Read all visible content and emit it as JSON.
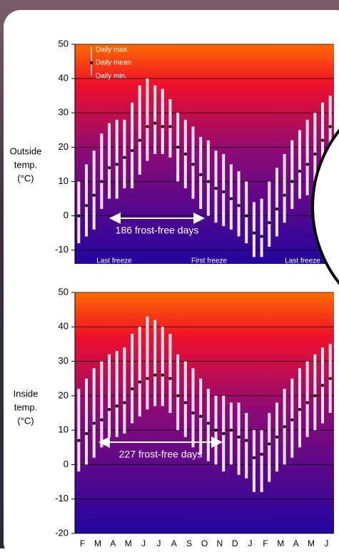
{
  "chart_data": [
    {
      "type": "range",
      "ylabel": [
        "Outside",
        "temp.",
        "(°C)"
      ],
      "x": [
        0.25,
        0.75,
        1.25,
        1.75,
        2.25,
        2.75,
        3.25,
        3.75,
        4.25,
        4.75,
        5.25,
        5.75,
        6.25,
        6.75,
        7.25,
        7.75,
        8.25,
        8.75,
        9.25,
        9.75,
        10.25,
        10.75,
        11.25,
        11.75,
        12.25,
        12.75,
        13.25,
        13.75,
        14.25,
        14.75,
        15.25,
        15.75,
        16.25,
        16.75
      ],
      "xlim": [
        0,
        17
      ],
      "ylim": [
        -14,
        50
      ],
      "yticks": [
        -10,
        0,
        10,
        20,
        30,
        40,
        50
      ],
      "series": [
        {
          "name": "Daily max.",
          "color": "#fbe4f4",
          "values": [
            10,
            15,
            19,
            24,
            27,
            28,
            28,
            33,
            38,
            40,
            38,
            37,
            34,
            30,
            28,
            26,
            23,
            22,
            19,
            18,
            15,
            13,
            10,
            4,
            5,
            10,
            14,
            18,
            22,
            25,
            28,
            30,
            33,
            35
          ]
        },
        {
          "name": "Daily mean",
          "color": "#000000",
          "values": [
            0,
            3,
            6,
            10,
            14,
            15,
            17,
            19,
            22,
            26,
            27,
            26,
            26,
            20,
            18,
            15,
            12,
            10,
            8,
            7,
            5,
            3,
            0,
            -5,
            -6,
            -2,
            2,
            6,
            10,
            13,
            15,
            18,
            22,
            26
          ]
        },
        {
          "name": "Daily min.",
          "color": "#fbe4f4",
          "values": [
            -8,
            -6,
            -4,
            2,
            5,
            5,
            8,
            8,
            12,
            16,
            18,
            18,
            17,
            10,
            8,
            5,
            2,
            0,
            -2,
            -3,
            -4,
            -6,
            -8,
            -12,
            -12,
            -9,
            -6,
            -2,
            2,
            5,
            6,
            10,
            14,
            18
          ]
        }
      ],
      "annotations": [
        "186 frost-free days"
      ],
      "freeze_labels": [
        "Last freeze",
        "First freeze",
        "Last freeze"
      ]
    },
    {
      "type": "range",
      "ylabel": [
        "Inside",
        "temp.",
        "(°C)"
      ],
      "categories": [
        "F",
        "M",
        "A",
        "M",
        "J",
        "J",
        "A",
        "S",
        "O",
        "N",
        "D",
        "J",
        "F",
        "M",
        "A",
        "M",
        "J"
      ],
      "x": [
        0.25,
        0.75,
        1.25,
        1.75,
        2.25,
        2.75,
        3.25,
        3.75,
        4.25,
        4.75,
        5.25,
        5.75,
        6.25,
        6.75,
        7.25,
        7.75,
        8.25,
        8.75,
        9.25,
        9.75,
        10.25,
        10.75,
        11.25,
        11.75,
        12.25,
        12.75,
        13.25,
        13.75,
        14.25,
        14.75,
        15.25,
        15.75,
        16.25,
        16.75
      ],
      "xlim": [
        0,
        17
      ],
      "ylim": [
        -20,
        50
      ],
      "yticks": [
        -20,
        -10,
        0,
        10,
        20,
        30,
        40,
        50
      ],
      "series": [
        {
          "name": "Daily max.",
          "color": "#fbe4f4",
          "values": [
            22,
            25,
            28,
            30,
            32,
            33,
            34,
            38,
            40,
            43,
            42,
            40,
            38,
            32,
            30,
            28,
            25,
            22,
            20,
            20,
            18,
            18,
            15,
            10,
            10,
            15,
            18,
            22,
            25,
            28,
            30,
            32,
            34,
            35
          ]
        },
        {
          "name": "Daily mean",
          "color": "#000000",
          "values": [
            7,
            9,
            12,
            13,
            16,
            17,
            18,
            22,
            24,
            25,
            26,
            26,
            25,
            20,
            18,
            15,
            14,
            12,
            10,
            9,
            10,
            8,
            7,
            2,
            3,
            6,
            8,
            11,
            13,
            16,
            18,
            20,
            23,
            25
          ]
        },
        {
          "name": "Daily min.",
          "color": "#fbe4f4",
          "values": [
            -2,
            0,
            2,
            5,
            8,
            8,
            9,
            12,
            14,
            16,
            17,
            17,
            15,
            10,
            8,
            5,
            3,
            1,
            0,
            -2,
            0,
            -3,
            -4,
            -8,
            -8,
            -5,
            -2,
            0,
            2,
            5,
            8,
            10,
            12,
            15
          ]
        }
      ],
      "annotations": [
        "227 frost-free days"
      ]
    }
  ]
}
